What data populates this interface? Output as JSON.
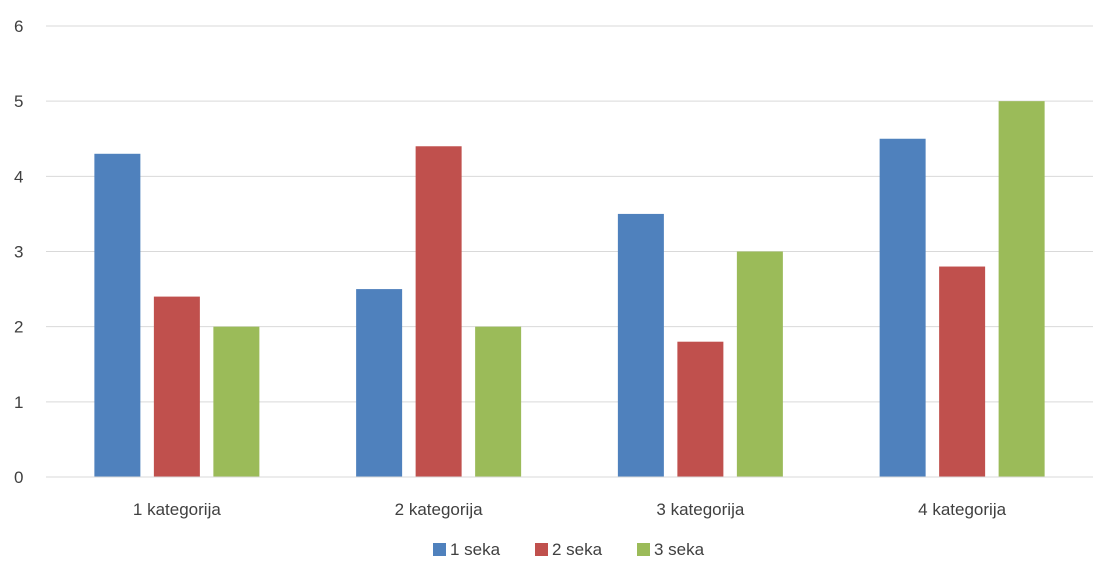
{
  "chart_data": {
    "type": "bar",
    "categories": [
      "1 kategorija",
      "2 kategorija",
      "3 kategorija",
      "4 kategorija"
    ],
    "series": [
      {
        "name": "1 seka",
        "color": "#4f81bd",
        "values": [
          4.3,
          2.5,
          3.5,
          4.5
        ]
      },
      {
        "name": "2 seka",
        "color": "#c0504d",
        "values": [
          2.4,
          4.4,
          1.8,
          2.8
        ]
      },
      {
        "name": "3 seka",
        "color": "#9bbb59",
        "values": [
          2.0,
          2.0,
          3.0,
          5.0
        ]
      }
    ],
    "ylim": [
      0,
      6
    ],
    "yticks": [
      "0",
      "1",
      "2",
      "3",
      "4",
      "5",
      "6"
    ],
    "grid": true,
    "legend_position": "bottom"
  }
}
